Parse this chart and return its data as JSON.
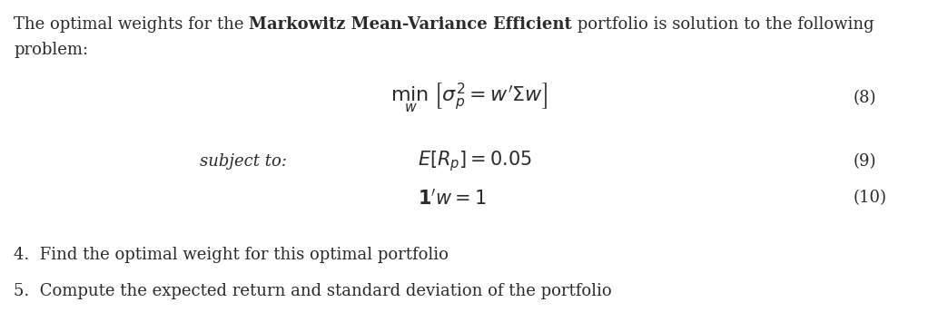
{
  "background_color": "#ffffff",
  "line1_normal": "The optimal weights for the ",
  "line1_bold": "Markowitz Mean-Variance Efficient",
  "line1_normal2": " portfolio is solution to the following",
  "line2": "problem:",
  "eq8_label": "(8)",
  "eq9_label": "(9)",
  "eq10_label": "(10)",
  "subject_to": "subject to:",
  "item4": "4.  Find the optimal weight for this optimal portfolio",
  "item5": "5.  Compute the expected return and standard deviation of the portfolio",
  "fig_width": 10.44,
  "fig_height": 3.55,
  "dpi": 100,
  "text_color": "#2b2b2b",
  "fontsize_main": 13.0,
  "fontsize_eq": 15,
  "fontsize_eq_label": 13
}
